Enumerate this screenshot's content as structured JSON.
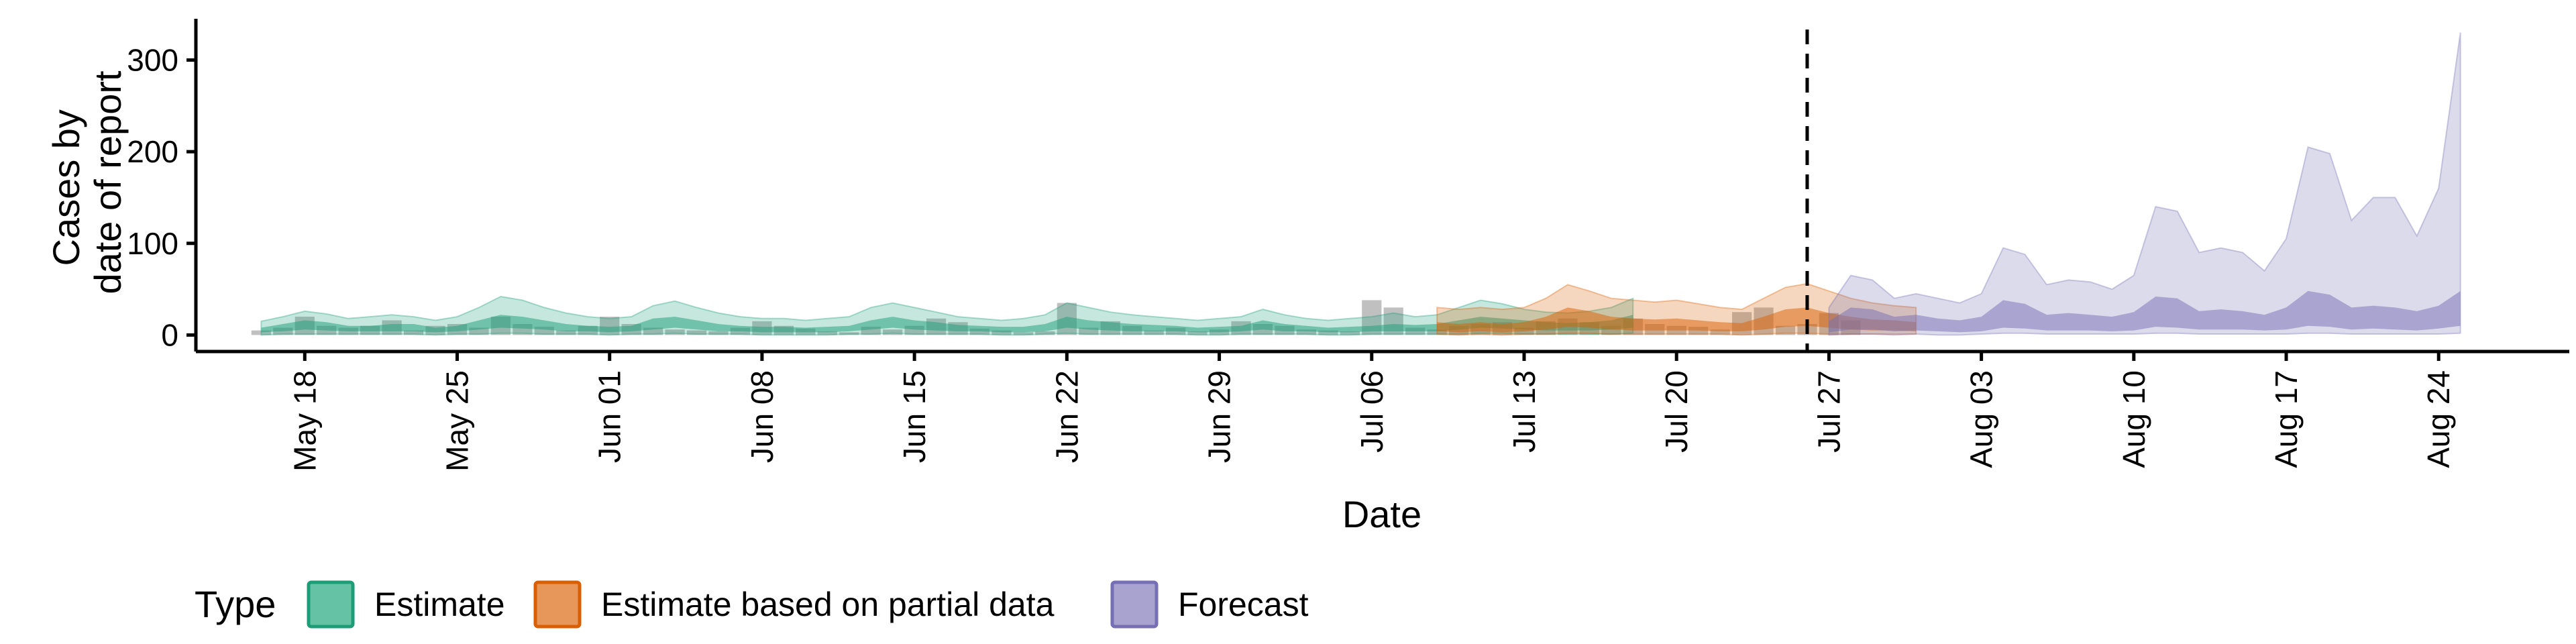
{
  "chart_data": {
    "type": "area",
    "xlabel": "Date",
    "ylabel_lines": [
      "Cases by",
      "date of report"
    ],
    "x_range": [
      "2020-05-13",
      "2020-08-30"
    ],
    "ylim": [
      -18,
      345
    ],
    "y_ticks": [
      0,
      100,
      200,
      300
    ],
    "x_ticks": [
      {
        "date": "2020-05-18",
        "label": "May 18"
      },
      {
        "date": "2020-05-25",
        "label": "May 25"
      },
      {
        "date": "2020-06-01",
        "label": "Jun 01"
      },
      {
        "date": "2020-06-08",
        "label": "Jun 08"
      },
      {
        "date": "2020-06-15",
        "label": "Jun 15"
      },
      {
        "date": "2020-06-22",
        "label": "Jun 22"
      },
      {
        "date": "2020-06-29",
        "label": "Jun 29"
      },
      {
        "date": "2020-07-06",
        "label": "Jul 06"
      },
      {
        "date": "2020-07-13",
        "label": "Jul 13"
      },
      {
        "date": "2020-07-20",
        "label": "Jul 20"
      },
      {
        "date": "2020-07-27",
        "label": "Jul 27"
      },
      {
        "date": "2020-08-03",
        "label": "Aug 03"
      },
      {
        "date": "2020-08-10",
        "label": "Aug 10"
      },
      {
        "date": "2020-08-17",
        "label": "Aug 17"
      },
      {
        "date": "2020-08-24",
        "label": "Aug 24"
      }
    ],
    "vline_date": "2020-07-26",
    "grid": false,
    "legend": {
      "position": "bottom-left",
      "title": "Type",
      "items": [
        {
          "label": "Estimate",
          "fill": "#66c2a5",
          "stroke": "#1b9e77"
        },
        {
          "label": "Estimate based on partial data",
          "fill": "#e8975a",
          "stroke": "#d95f02"
        },
        {
          "label": "Forecast",
          "fill": "#a9a3d0",
          "stroke": "#7570b3"
        }
      ]
    },
    "colors": {
      "estimate": "#1b9e77",
      "partial": "#d95f02",
      "forecast": "#7570b3",
      "observed": "#8c8c8c"
    },
    "observed": {
      "start_date": "2020-05-16",
      "values": [
        5,
        8,
        20,
        10,
        8,
        10,
        16,
        5,
        10,
        12,
        8,
        20,
        12,
        9,
        5,
        10,
        20,
        12,
        8,
        6,
        5,
        4,
        8,
        15,
        10,
        7,
        4,
        3,
        9,
        6,
        10,
        18,
        14,
        7,
        5,
        3,
        4,
        35,
        8,
        15,
        10,
        5,
        8,
        4,
        6,
        15,
        12,
        10,
        6,
        5,
        4,
        38,
        30,
        8,
        6,
        10,
        12,
        14,
        8,
        15,
        18,
        14,
        10,
        18,
        12,
        10,
        9,
        6,
        25,
        30,
        10,
        12,
        24,
        16
      ]
    },
    "series": [
      {
        "name": "Estimate",
        "start_date": "2020-05-16",
        "outer_upper": [
          15,
          20,
          26,
          23,
          18,
          20,
          22,
          20,
          16,
          20,
          30,
          42,
          38,
          30,
          24,
          20,
          18,
          20,
          32,
          37,
          30,
          24,
          20,
          18,
          18,
          16,
          18,
          20,
          30,
          35,
          30,
          25,
          20,
          18,
          16,
          18,
          22,
          35,
          30,
          25,
          22,
          20,
          18,
          16,
          18,
          20,
          28,
          22,
          18,
          16,
          18,
          20,
          24,
          20,
          22,
          30,
          38,
          34,
          28,
          25,
          24,
          26,
          30,
          40
        ],
        "inner_upper": [
          8,
          12,
          16,
          14,
          10,
          10,
          12,
          12,
          8,
          10,
          16,
          22,
          20,
          16,
          12,
          10,
          9,
          10,
          18,
          20,
          16,
          12,
          10,
          9,
          9,
          8,
          9,
          10,
          16,
          20,
          16,
          14,
          11,
          10,
          9,
          9,
          12,
          20,
          16,
          14,
          12,
          11,
          10,
          8,
          9,
          10,
          16,
          12,
          10,
          8,
          9,
          10,
          12,
          11,
          12,
          16,
          20,
          18,
          16,
          14,
          13,
          14,
          16,
          22
        ],
        "inner_lower": [
          3,
          4,
          6,
          5,
          4,
          4,
          4,
          4,
          3,
          4,
          6,
          8,
          7,
          6,
          4,
          4,
          3,
          4,
          6,
          8,
          6,
          4,
          4,
          3,
          3,
          3,
          3,
          4,
          6,
          8,
          6,
          5,
          4,
          4,
          3,
          3,
          4,
          8,
          6,
          5,
          4,
          4,
          4,
          3,
          3,
          4,
          6,
          4,
          4,
          3,
          3,
          4,
          4,
          4,
          4,
          6,
          8,
          7,
          6,
          5,
          5,
          5,
          6,
          8
        ],
        "outer_lower": [
          0,
          1,
          1,
          1,
          1,
          1,
          1,
          1,
          0,
          1,
          1,
          2,
          2,
          1,
          1,
          1,
          0,
          1,
          1,
          2,
          1,
          1,
          1,
          0,
          0,
          0,
          0,
          1,
          1,
          2,
          1,
          1,
          1,
          1,
          0,
          0,
          1,
          2,
          1,
          1,
          1,
          1,
          1,
          0,
          0,
          1,
          1,
          1,
          1,
          0,
          0,
          1,
          1,
          1,
          1,
          1,
          2,
          2,
          1,
          1,
          1,
          1,
          1,
          2
        ]
      },
      {
        "name": "Estimate based on partial data",
        "start_date": "2020-07-09",
        "outer_upper": [
          30,
          28,
          30,
          28,
          30,
          40,
          55,
          48,
          40,
          38,
          36,
          38,
          34,
          30,
          28,
          40,
          52,
          56,
          48,
          40,
          35,
          32,
          30
        ],
        "inner_upper": [
          14,
          12,
          14,
          12,
          14,
          20,
          30,
          26,
          20,
          18,
          17,
          18,
          16,
          14,
          13,
          20,
          28,
          30,
          24,
          20,
          17,
          16,
          14
        ],
        "inner_lower": [
          4,
          3,
          4,
          3,
          4,
          6,
          9,
          8,
          6,
          5,
          5,
          5,
          5,
          4,
          4,
          6,
          9,
          10,
          8,
          6,
          5,
          5,
          4
        ],
        "outer_lower": [
          1,
          0,
          1,
          0,
          1,
          1,
          2,
          2,
          1,
          1,
          1,
          1,
          1,
          1,
          0,
          1,
          2,
          2,
          1,
          1,
          1,
          1,
          1
        ]
      },
      {
        "name": "Forecast",
        "start_date": "2020-07-27",
        "outer_upper": [
          30,
          65,
          60,
          40,
          45,
          40,
          35,
          45,
          95,
          88,
          55,
          60,
          58,
          50,
          65,
          140,
          135,
          90,
          95,
          90,
          70,
          105,
          205,
          198,
          125,
          150,
          150,
          108,
          160,
          330
        ],
        "inner_upper": [
          15,
          30,
          28,
          20,
          22,
          18,
          16,
          20,
          38,
          34,
          22,
          24,
          22,
          20,
          25,
          42,
          40,
          26,
          28,
          26,
          22,
          30,
          48,
          44,
          30,
          32,
          30,
          26,
          32,
          48
        ],
        "inner_lower": [
          3,
          6,
          6,
          4,
          5,
          4,
          3,
          4,
          8,
          7,
          5,
          5,
          5,
          4,
          5,
          9,
          8,
          6,
          6,
          6,
          5,
          6,
          10,
          9,
          6,
          7,
          6,
          5,
          7,
          10
        ],
        "outer_lower": [
          0,
          1,
          1,
          0,
          1,
          0,
          0,
          1,
          2,
          2,
          1,
          1,
          1,
          1,
          1,
          2,
          2,
          1,
          1,
          1,
          1,
          1,
          2,
          2,
          1,
          1,
          1,
          1,
          1,
          2
        ]
      }
    ]
  }
}
